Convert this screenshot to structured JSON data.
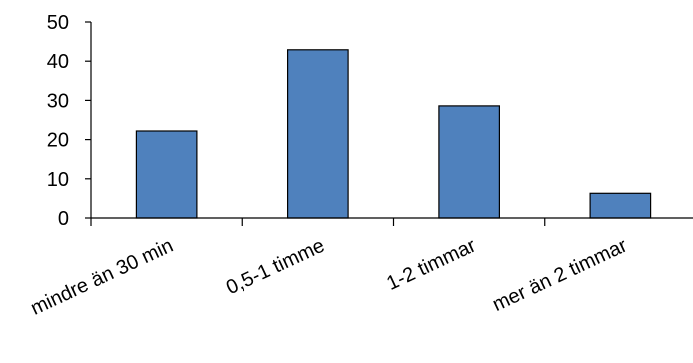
{
  "chart_data": {
    "type": "bar",
    "categories": [
      "mindre än 30 min",
      "0,5-1 timme",
      "1-2 timmar",
      "mer än 2 timmar"
    ],
    "values": [
      22.2,
      42.9,
      28.6,
      6.3
    ],
    "ylim": [
      0,
      50
    ],
    "yticks": [
      0,
      10,
      20,
      30,
      40,
      50
    ],
    "grid": false,
    "legend": "none",
    "title": "",
    "xlabel": "",
    "ylabel": "",
    "bar_color": "#4f81bd",
    "bar_edge_color": "#000000"
  }
}
